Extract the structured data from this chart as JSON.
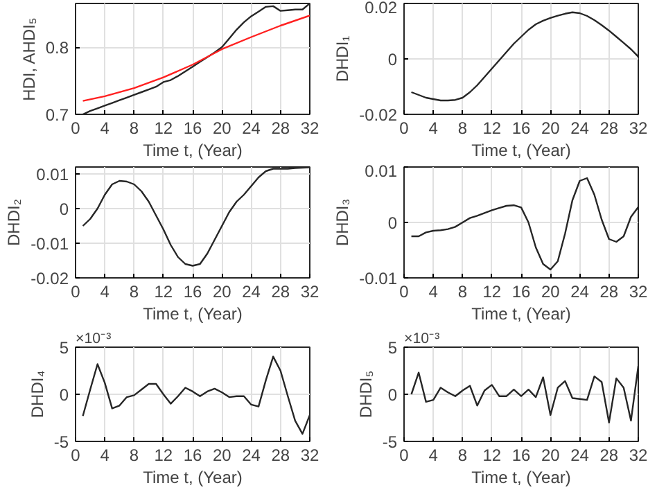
{
  "chart_data": [
    {
      "type": "line",
      "xlabel": "Time t, (Year)",
      "ylabel": "HDI, AHDI₅",
      "xlim": [
        0,
        32
      ],
      "ylim": [
        0.7,
        0.865
      ],
      "xticks": [
        0,
        4,
        8,
        12,
        16,
        20,
        24,
        28,
        32
      ],
      "yticks": [
        0.7,
        0.8
      ],
      "grid": true,
      "series": [
        {
          "color": "#262626",
          "x": [
            1,
            2,
            3,
            4,
            5,
            6,
            7,
            8,
            9,
            10,
            11,
            12,
            13,
            14,
            15,
            16,
            17,
            18,
            19,
            20,
            21,
            22,
            23,
            24,
            25,
            26,
            27,
            28,
            29,
            30,
            31,
            32
          ],
          "values": [
            0.7,
            0.705,
            0.709,
            0.713,
            0.717,
            0.721,
            0.725,
            0.729,
            0.733,
            0.737,
            0.741,
            0.748,
            0.751,
            0.757,
            0.764,
            0.771,
            0.778,
            0.785,
            0.792,
            0.8,
            0.813,
            0.826,
            0.837,
            0.846,
            0.853,
            0.86,
            0.861,
            0.854,
            0.855,
            0.856,
            0.856,
            0.865
          ]
        },
        {
          "color": "#ff2020",
          "x": [
            1,
            4,
            8,
            12,
            16,
            20,
            24,
            28,
            32
          ],
          "values": [
            0.72,
            0.727,
            0.739,
            0.755,
            0.774,
            0.797,
            0.815,
            0.832,
            0.847
          ]
        }
      ]
    },
    {
      "type": "line",
      "xlabel": "Time t, (Year)",
      "ylabel": "DHDI₁",
      "xlim": [
        0,
        32
      ],
      "ylim": [
        -0.02,
        0.02
      ],
      "xticks": [
        0,
        4,
        8,
        12,
        16,
        20,
        24,
        28,
        32
      ],
      "yticks": [
        -0.02,
        0,
        0.02
      ],
      "grid": true,
      "series": [
        {
          "color": "#262626",
          "x": [
            1,
            2,
            3,
            4,
            5,
            6,
            7,
            8,
            9,
            10,
            11,
            12,
            13,
            14,
            15,
            16,
            17,
            18,
            19,
            20,
            21,
            22,
            23,
            24,
            25,
            26,
            27,
            28,
            29,
            30,
            31,
            32
          ],
          "values": [
            -0.012,
            -0.013,
            -0.014,
            -0.0145,
            -0.015,
            -0.015,
            -0.0148,
            -0.014,
            -0.012,
            -0.0095,
            -0.0065,
            -0.0035,
            -0.0005,
            0.0025,
            0.0055,
            0.008,
            0.0105,
            0.0125,
            0.0138,
            0.0148,
            0.0156,
            0.0163,
            0.0168,
            0.0165,
            0.0155,
            0.014,
            0.0122,
            0.0102,
            0.008,
            0.0058,
            0.0035,
            0.0008
          ]
        }
      ]
    },
    {
      "type": "line",
      "xlabel": "Time t, (Year)",
      "ylabel": "DHDI₂",
      "xlim": [
        0,
        32
      ],
      "ylim": [
        -0.02,
        0.012
      ],
      "xticks": [
        0,
        4,
        8,
        12,
        16,
        20,
        24,
        28,
        32
      ],
      "yticks": [
        -0.02,
        -0.01,
        0,
        0.01
      ],
      "grid": true,
      "series": [
        {
          "color": "#262626",
          "x": [
            1,
            2,
            3,
            4,
            5,
            6,
            7,
            8,
            9,
            10,
            11,
            12,
            13,
            14,
            15,
            16,
            17,
            18,
            19,
            20,
            21,
            22,
            23,
            24,
            25,
            26,
            27,
            28,
            29,
            30,
            31,
            32
          ],
          "values": [
            -0.005,
            -0.003,
            0,
            0.004,
            0.007,
            0.008,
            0.0078,
            0.007,
            0.005,
            0.002,
            -0.002,
            -0.006,
            -0.0105,
            -0.014,
            -0.016,
            -0.0165,
            -0.016,
            -0.013,
            -0.009,
            -0.005,
            -0.001,
            0.002,
            0.004,
            0.0065,
            0.009,
            0.0108,
            0.0115,
            0.0115,
            0.0115,
            0.0117,
            0.0118,
            0.0119
          ]
        }
      ]
    },
    {
      "type": "line",
      "xlabel": "Time t, (Year)",
      "ylabel": "DHDI₃",
      "xlim": [
        0,
        32
      ],
      "ylim": [
        -0.01,
        0.01
      ],
      "xticks": [
        0,
        4,
        8,
        12,
        16,
        20,
        24,
        28,
        32
      ],
      "yticks": [
        -0.01,
        0,
        0.01
      ],
      "grid": true,
      "series": [
        {
          "color": "#262626",
          "x": [
            1,
            2,
            3,
            4,
            5,
            6,
            7,
            8,
            9,
            10,
            11,
            12,
            13,
            14,
            15,
            16,
            17,
            18,
            19,
            20,
            21,
            22,
            23,
            24,
            25,
            26,
            27,
            28,
            29,
            30,
            31,
            32
          ],
          "values": [
            -0.0025,
            -0.0025,
            -0.0018,
            -0.0015,
            -0.0014,
            -0.0012,
            -0.0008,
            0,
            0.0008,
            0.0012,
            0.0017,
            0.0022,
            0.0026,
            0.003,
            0.0031,
            0.0027,
            0,
            -0.0045,
            -0.0075,
            -0.0085,
            -0.007,
            -0.002,
            0.004,
            0.0075,
            0.008,
            0.005,
            0.0005,
            -0.003,
            -0.0035,
            -0.0025,
            0.001,
            0.0028
          ]
        }
      ]
    },
    {
      "type": "line",
      "xlabel": "Time t, (Year)",
      "ylabel": "DHDI₄",
      "xlim": [
        0,
        32
      ],
      "ylim": [
        -5,
        5
      ],
      "xticks": [
        0,
        4,
        8,
        12,
        16,
        20,
        24,
        28,
        32
      ],
      "yticks": [
        -5,
        0,
        5
      ],
      "grid": true,
      "annotations": [
        "×10⁻³"
      ],
      "series": [
        {
          "color": "#262626",
          "x": [
            1,
            2,
            3,
            4,
            5,
            6,
            7,
            8,
            9,
            10,
            11,
            12,
            13,
            14,
            15,
            16,
            17,
            18,
            19,
            20,
            21,
            22,
            23,
            24,
            25,
            26,
            27,
            28,
            29,
            30,
            31,
            32
          ],
          "values": [
            -2.3,
            0.5,
            3.2,
            1.2,
            -1.5,
            -1.2,
            -0.3,
            -0.1,
            0.5,
            1.1,
            1.1,
            0,
            -1.0,
            -0.2,
            0.7,
            0.3,
            -0.2,
            0.3,
            0.6,
            0.2,
            -0.3,
            -0.2,
            -0.2,
            -1.1,
            -1.3,
            1.5,
            4.0,
            2.5,
            -0.2,
            -2.8,
            -4.2,
            -2.2
          ]
        }
      ]
    },
    {
      "type": "line",
      "xlabel": "Time t, (Year)",
      "ylabel": "DHDI₅",
      "xlim": [
        0,
        32
      ],
      "ylim": [
        -5,
        5
      ],
      "xticks": [
        0,
        4,
        8,
        12,
        16,
        20,
        24,
        28,
        32
      ],
      "yticks": [
        -5,
        0,
        5
      ],
      "grid": true,
      "annotations": [
        "×10⁻³"
      ],
      "series": [
        {
          "color": "#262626",
          "x": [
            1,
            2,
            3,
            4,
            5,
            6,
            7,
            8,
            9,
            10,
            11,
            12,
            13,
            14,
            15,
            16,
            17,
            18,
            19,
            20,
            21,
            22,
            23,
            24,
            25,
            26,
            27,
            28,
            29,
            30,
            31,
            32
          ],
          "values": [
            0,
            2.3,
            -0.8,
            -0.6,
            0.7,
            0.2,
            -0.2,
            0.4,
            0.9,
            -1.2,
            0.4,
            1.0,
            -0.2,
            -0.2,
            0.5,
            -0.2,
            0.5,
            -0.3,
            1.8,
            -2.2,
            0.7,
            1.4,
            -0.4,
            -0.5,
            -0.6,
            1.9,
            1.3,
            -3.0,
            1.7,
            0.7,
            -2.8,
            3.0
          ]
        }
      ]
    }
  ]
}
